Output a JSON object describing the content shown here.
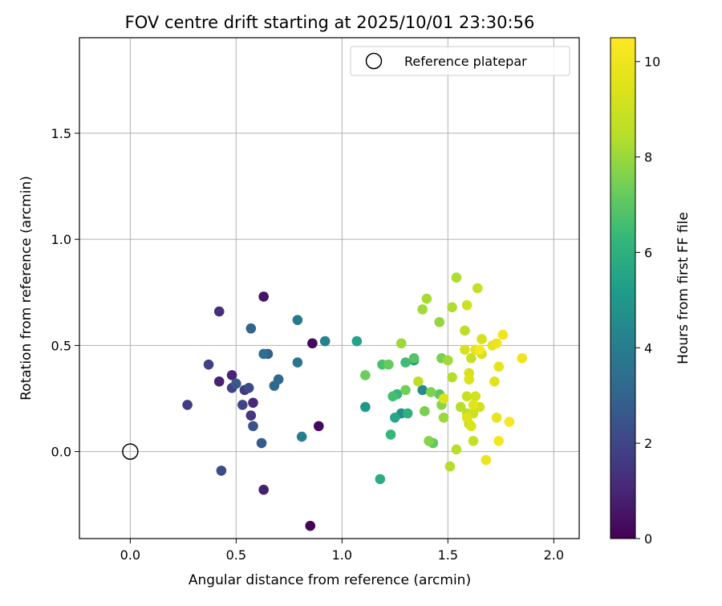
{
  "chart_data": {
    "type": "scatter",
    "title": "FOV centre drift starting at 2025/10/01 23:30:56",
    "xlabel": "Angular distance from reference (arcmin)",
    "ylabel": "Rotation from reference (arcmin)",
    "xlim": [
      -0.24,
      2.12
    ],
    "ylim": [
      -0.41,
      1.95
    ],
    "xticks": [
      "0.0",
      "0.5",
      "1.0",
      "1.5",
      "2.0"
    ],
    "yticks": [
      "0.0",
      "0.5",
      "1.0",
      "1.5"
    ],
    "xtick_values": [
      0.0,
      0.5,
      1.0,
      1.5,
      2.0
    ],
    "ytick_values": [
      0.0,
      0.5,
      1.0,
      1.5
    ],
    "grid": true,
    "legend": {
      "position": "top-right",
      "entries": [
        "Reference platepar"
      ]
    },
    "reference_point": {
      "x": 0.0,
      "y": 0.0,
      "label": "Reference platepar"
    },
    "colorbar": {
      "label": "Hours from first FF file",
      "colormap": "viridis",
      "range": [
        0,
        10.5
      ],
      "ticks": [
        "0",
        "2",
        "4",
        "6",
        "8",
        "10"
      ],
      "tick_values": [
        0,
        2,
        4,
        6,
        8,
        10
      ]
    },
    "points": [
      {
        "x": 0.85,
        "y": -0.35,
        "c": 0.1
      },
      {
        "x": 0.86,
        "y": 0.51,
        "c": 0.2
      },
      {
        "x": 0.89,
        "y": 0.12,
        "c": 0.2
      },
      {
        "x": 0.63,
        "y": 0.73,
        "c": 0.5
      },
      {
        "x": 0.63,
        "y": -0.18,
        "c": 0.8
      },
      {
        "x": 0.42,
        "y": 0.33,
        "c": 0.9
      },
      {
        "x": 0.48,
        "y": 0.36,
        "c": 1.0
      },
      {
        "x": 0.58,
        "y": 0.23,
        "c": 1.1
      },
      {
        "x": 0.42,
        "y": 0.66,
        "c": 1.3
      },
      {
        "x": 0.57,
        "y": 0.17,
        "c": 1.5
      },
      {
        "x": 0.54,
        "y": 0.29,
        "c": 1.6
      },
      {
        "x": 0.27,
        "y": 0.22,
        "c": 1.7
      },
      {
        "x": 0.37,
        "y": 0.41,
        "c": 1.8
      },
      {
        "x": 0.48,
        "y": 0.3,
        "c": 1.9
      },
      {
        "x": 0.53,
        "y": 0.22,
        "c": 2.0
      },
      {
        "x": 0.56,
        "y": 0.3,
        "c": 2.1
      },
      {
        "x": 0.43,
        "y": -0.09,
        "c": 2.2
      },
      {
        "x": 0.58,
        "y": 0.12,
        "c": 2.4
      },
      {
        "x": 0.5,
        "y": 0.32,
        "c": 2.6
      },
      {
        "x": 0.62,
        "y": 0.04,
        "c": 2.7
      },
      {
        "x": 0.65,
        "y": 0.46,
        "c": 2.8
      },
      {
        "x": 0.57,
        "y": 0.58,
        "c": 3.0
      },
      {
        "x": 0.7,
        "y": 0.34,
        "c": 3.1
      },
      {
        "x": 0.68,
        "y": 0.31,
        "c": 3.2
      },
      {
        "x": 0.63,
        "y": 0.46,
        "c": 3.4
      },
      {
        "x": 0.79,
        "y": 0.42,
        "c": 3.6
      },
      {
        "x": 0.79,
        "y": 0.62,
        "c": 3.8
      },
      {
        "x": 0.81,
        "y": 0.07,
        "c": 4.0
      },
      {
        "x": 0.92,
        "y": 0.52,
        "c": 4.2
      },
      {
        "x": 1.38,
        "y": 0.29,
        "c": 4.5
      },
      {
        "x": 1.28,
        "y": 0.18,
        "c": 4.7
      },
      {
        "x": 1.11,
        "y": 0.21,
        "c": 5.0
      },
      {
        "x": 1.34,
        "y": 0.43,
        "c": 5.2
      },
      {
        "x": 1.07,
        "y": 0.52,
        "c": 5.4
      },
      {
        "x": 1.25,
        "y": 0.16,
        "c": 5.6
      },
      {
        "x": 1.18,
        "y": -0.13,
        "c": 5.9
      },
      {
        "x": 1.31,
        "y": 0.18,
        "c": 6.0
      },
      {
        "x": 1.26,
        "y": 0.27,
        "c": 6.2
      },
      {
        "x": 1.23,
        "y": 0.08,
        "c": 6.3
      },
      {
        "x": 1.3,
        "y": 0.42,
        "c": 6.5
      },
      {
        "x": 1.24,
        "y": 0.26,
        "c": 6.6
      },
      {
        "x": 1.19,
        "y": 0.41,
        "c": 6.7
      },
      {
        "x": 1.34,
        "y": 0.44,
        "c": 6.9
      },
      {
        "x": 1.46,
        "y": 0.27,
        "c": 7.0
      },
      {
        "x": 1.43,
        "y": 0.04,
        "c": 7.1
      },
      {
        "x": 1.22,
        "y": 0.41,
        "c": 7.2
      },
      {
        "x": 1.11,
        "y": 0.36,
        "c": 7.3
      },
      {
        "x": 1.3,
        "y": 0.29,
        "c": 7.4
      },
      {
        "x": 1.39,
        "y": 0.19,
        "c": 7.5
      },
      {
        "x": 1.47,
        "y": 0.44,
        "c": 7.5
      },
      {
        "x": 1.42,
        "y": 0.28,
        "c": 7.6
      },
      {
        "x": 1.41,
        "y": 0.05,
        "c": 7.7
      },
      {
        "x": 1.47,
        "y": 0.22,
        "c": 7.8
      },
      {
        "x": 1.46,
        "y": 0.61,
        "c": 7.9
      },
      {
        "x": 1.28,
        "y": 0.51,
        "c": 8.0
      },
      {
        "x": 1.48,
        "y": 0.16,
        "c": 8.0
      },
      {
        "x": 1.5,
        "y": 0.43,
        "c": 8.1
      },
      {
        "x": 1.38,
        "y": 0.67,
        "c": 8.1
      },
      {
        "x": 1.4,
        "y": 0.72,
        "c": 8.2
      },
      {
        "x": 1.52,
        "y": 0.68,
        "c": 8.3
      },
      {
        "x": 1.54,
        "y": 0.82,
        "c": 8.3
      },
      {
        "x": 1.51,
        "y": -0.07,
        "c": 8.4
      },
      {
        "x": 1.52,
        "y": 0.35,
        "c": 8.4
      },
      {
        "x": 1.54,
        "y": 0.01,
        "c": 8.5
      },
      {
        "x": 1.56,
        "y": 0.21,
        "c": 8.5
      },
      {
        "x": 1.58,
        "y": 0.57,
        "c": 8.6
      },
      {
        "x": 1.36,
        "y": 0.33,
        "c": 8.6
      },
      {
        "x": 1.59,
        "y": 0.18,
        "c": 8.7
      },
      {
        "x": 1.6,
        "y": 0.13,
        "c": 8.7
      },
      {
        "x": 1.62,
        "y": 0.05,
        "c": 8.8
      },
      {
        "x": 1.64,
        "y": 0.77,
        "c": 8.8
      },
      {
        "x": 1.59,
        "y": 0.26,
        "c": 8.9
      },
      {
        "x": 1.61,
        "y": 0.44,
        "c": 8.9
      },
      {
        "x": 1.59,
        "y": 0.69,
        "c": 9.0
      },
      {
        "x": 1.62,
        "y": 0.18,
        "c": 9.0
      },
      {
        "x": 1.63,
        "y": 0.26,
        "c": 9.1
      },
      {
        "x": 1.65,
        "y": 0.21,
        "c": 9.1
      },
      {
        "x": 1.66,
        "y": 0.53,
        "c": 9.2
      },
      {
        "x": 1.66,
        "y": 0.46,
        "c": 9.2
      },
      {
        "x": 1.58,
        "y": 0.48,
        "c": 9.3
      },
      {
        "x": 1.6,
        "y": 0.37,
        "c": 9.3
      },
      {
        "x": 1.6,
        "y": 0.34,
        "c": 9.4
      },
      {
        "x": 1.61,
        "y": 0.12,
        "c": 9.4
      },
      {
        "x": 1.59,
        "y": 0.16,
        "c": 9.5
      },
      {
        "x": 1.48,
        "y": 0.25,
        "c": 9.5
      },
      {
        "x": 1.62,
        "y": 0.22,
        "c": 9.6
      },
      {
        "x": 1.72,
        "y": 0.33,
        "c": 9.6
      },
      {
        "x": 1.63,
        "y": 0.48,
        "c": 9.7
      },
      {
        "x": 1.71,
        "y": 0.5,
        "c": 9.7
      },
      {
        "x": 1.73,
        "y": 0.16,
        "c": 9.8
      },
      {
        "x": 1.74,
        "y": 0.4,
        "c": 9.8
      },
      {
        "x": 1.68,
        "y": -0.04,
        "c": 9.9
      },
      {
        "x": 1.73,
        "y": 0.51,
        "c": 9.9
      },
      {
        "x": 1.85,
        "y": 0.44,
        "c": 10.0
      },
      {
        "x": 1.76,
        "y": 0.55,
        "c": 10.1
      },
      {
        "x": 1.74,
        "y": 0.05,
        "c": 10.2
      },
      {
        "x": 1.79,
        "y": 0.14,
        "c": 10.3
      },
      {
        "x": 1.65,
        "y": 0.48,
        "c": 10.4
      }
    ]
  }
}
